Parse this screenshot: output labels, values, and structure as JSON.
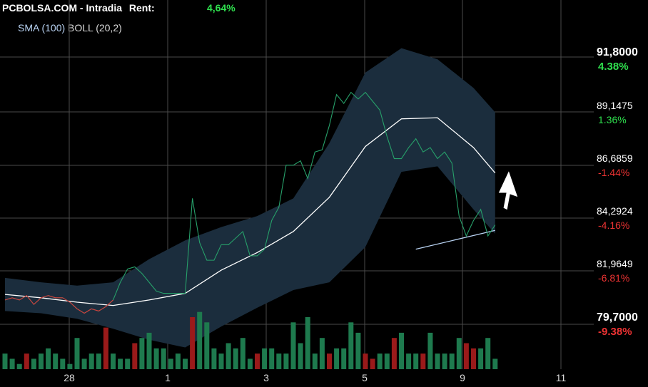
{
  "header": {
    "title": "PCBOLSA.COM - Intradia",
    "rent_label": "Rent:",
    "rent_value": "4,64%"
  },
  "indicators": {
    "sma_label": "SMA (100)",
    "boll_label": "BOLL (20,2)"
  },
  "colors": {
    "background": "#000000",
    "band_fill": "#1b2d3d",
    "grid": "#4a4a4a",
    "price_up": "#27a06a",
    "price_down": "#d63a3a",
    "boll_mid": "#ffffff",
    "sma": "#b8d2f2",
    "label_green": "#2fe04e",
    "label_red": "#ee3333",
    "volume_up": "#1e7a4e",
    "volume_down": "#9a1a1a"
  },
  "chart_data": {
    "type": "line",
    "x_tick_labels": [
      "28",
      "1",
      "3",
      "5",
      "9",
      "11"
    ],
    "y_ticks": [
      {
        "price": "91,8000",
        "pct": "4.38%"
      },
      {
        "price": "89,1475",
        "pct": "1.36%"
      },
      {
        "price": "86,6859",
        "pct": "-1.44%"
      },
      {
        "price": "84,2924",
        "pct": "-4.16%"
      },
      {
        "price": "81,9649",
        "pct": "-6.81%"
      },
      {
        "price": "79,7000",
        "pct": "-9.38%"
      }
    ],
    "ylim": [
      79.7,
      91.8
    ],
    "grid": true,
    "series": [
      {
        "role": "price",
        "values": [
          80.8,
          80.9,
          80.8,
          81.0,
          80.6,
          80.9,
          81.0,
          80.9,
          80.9,
          80.7,
          80.4,
          80.2,
          80.4,
          80.3,
          80.5,
          80.8,
          81.6,
          82.2,
          82.3,
          82.0,
          81.6,
          81.2,
          81.1,
          81.1,
          81.1,
          81.1,
          85.4,
          83.4,
          82.6,
          82.6,
          83.3,
          83.3,
          83.6,
          83.9,
          82.8,
          82.8,
          83.1,
          84.4,
          85.0,
          86.9,
          86.9,
          87.1,
          86.3,
          87.5,
          87.6,
          88.7,
          90.1,
          89.7,
          90.2,
          89.9,
          90.2,
          89.8,
          89.4,
          88.2,
          87.2,
          87.2,
          87.7,
          88.1,
          87.5,
          87.7,
          87.2,
          87.5,
          87.0,
          84.6,
          83.7,
          84.4,
          84.9,
          83.7,
          84.2
        ],
        "down_ranges": [
          [
            0,
            8
          ],
          [
            8,
            15
          ]
        ]
      },
      {
        "role": "bollinger_mid",
        "x": [
          0,
          5,
          10,
          15,
          20,
          25,
          30,
          35,
          40,
          45,
          50,
          55,
          60,
          65,
          68
        ],
        "values": [
          81.05,
          80.9,
          80.7,
          80.55,
          80.8,
          81.1,
          82.15,
          82.95,
          83.9,
          85.45,
          87.75,
          89.0,
          89.05,
          87.7,
          86.55
        ]
      },
      {
        "role": "bollinger_upper",
        "x": [
          0,
          5,
          10,
          15,
          20,
          25,
          30,
          35,
          40,
          45,
          50,
          55,
          60,
          65,
          68
        ],
        "values": [
          81.8,
          81.6,
          81.45,
          81.6,
          82.65,
          83.5,
          84.1,
          84.6,
          85.4,
          87.9,
          91.1,
          92.2,
          91.7,
          90.4,
          89.3
        ]
      },
      {
        "role": "bollinger_lower",
        "x": [
          0,
          5,
          10,
          15,
          20,
          25,
          30,
          35,
          40,
          45,
          50,
          55,
          60,
          65,
          68
        ],
        "values": [
          80.3,
          80.2,
          79.95,
          79.5,
          79.0,
          78.65,
          79.6,
          80.45,
          81.25,
          81.6,
          83.2,
          86.6,
          86.85,
          84.9,
          83.8
        ]
      },
      {
        "role": "sma_100",
        "x": [
          57,
          68
        ],
        "values": [
          83.1,
          83.95
        ]
      }
    ],
    "volume": [
      3,
      2,
      1,
      3,
      2,
      3,
      4,
      3,
      2,
      1,
      6,
      2,
      3,
      3,
      8,
      3,
      2,
      2,
      5,
      6,
      7,
      4,
      4,
      2,
      3,
      2,
      10,
      11,
      9,
      4,
      3,
      5,
      4,
      6,
      2,
      3,
      4,
      4,
      3,
      3,
      9,
      5,
      10,
      3,
      6,
      3,
      4,
      4,
      9,
      7,
      3,
      2,
      3,
      3,
      6,
      7,
      3,
      3,
      3,
      7,
      3,
      3,
      3,
      6,
      5,
      4,
      4,
      6,
      2
    ],
    "volume_down_idx": [
      3,
      14,
      18,
      26,
      35,
      45,
      50,
      51,
      54,
      58,
      64,
      65
    ]
  }
}
